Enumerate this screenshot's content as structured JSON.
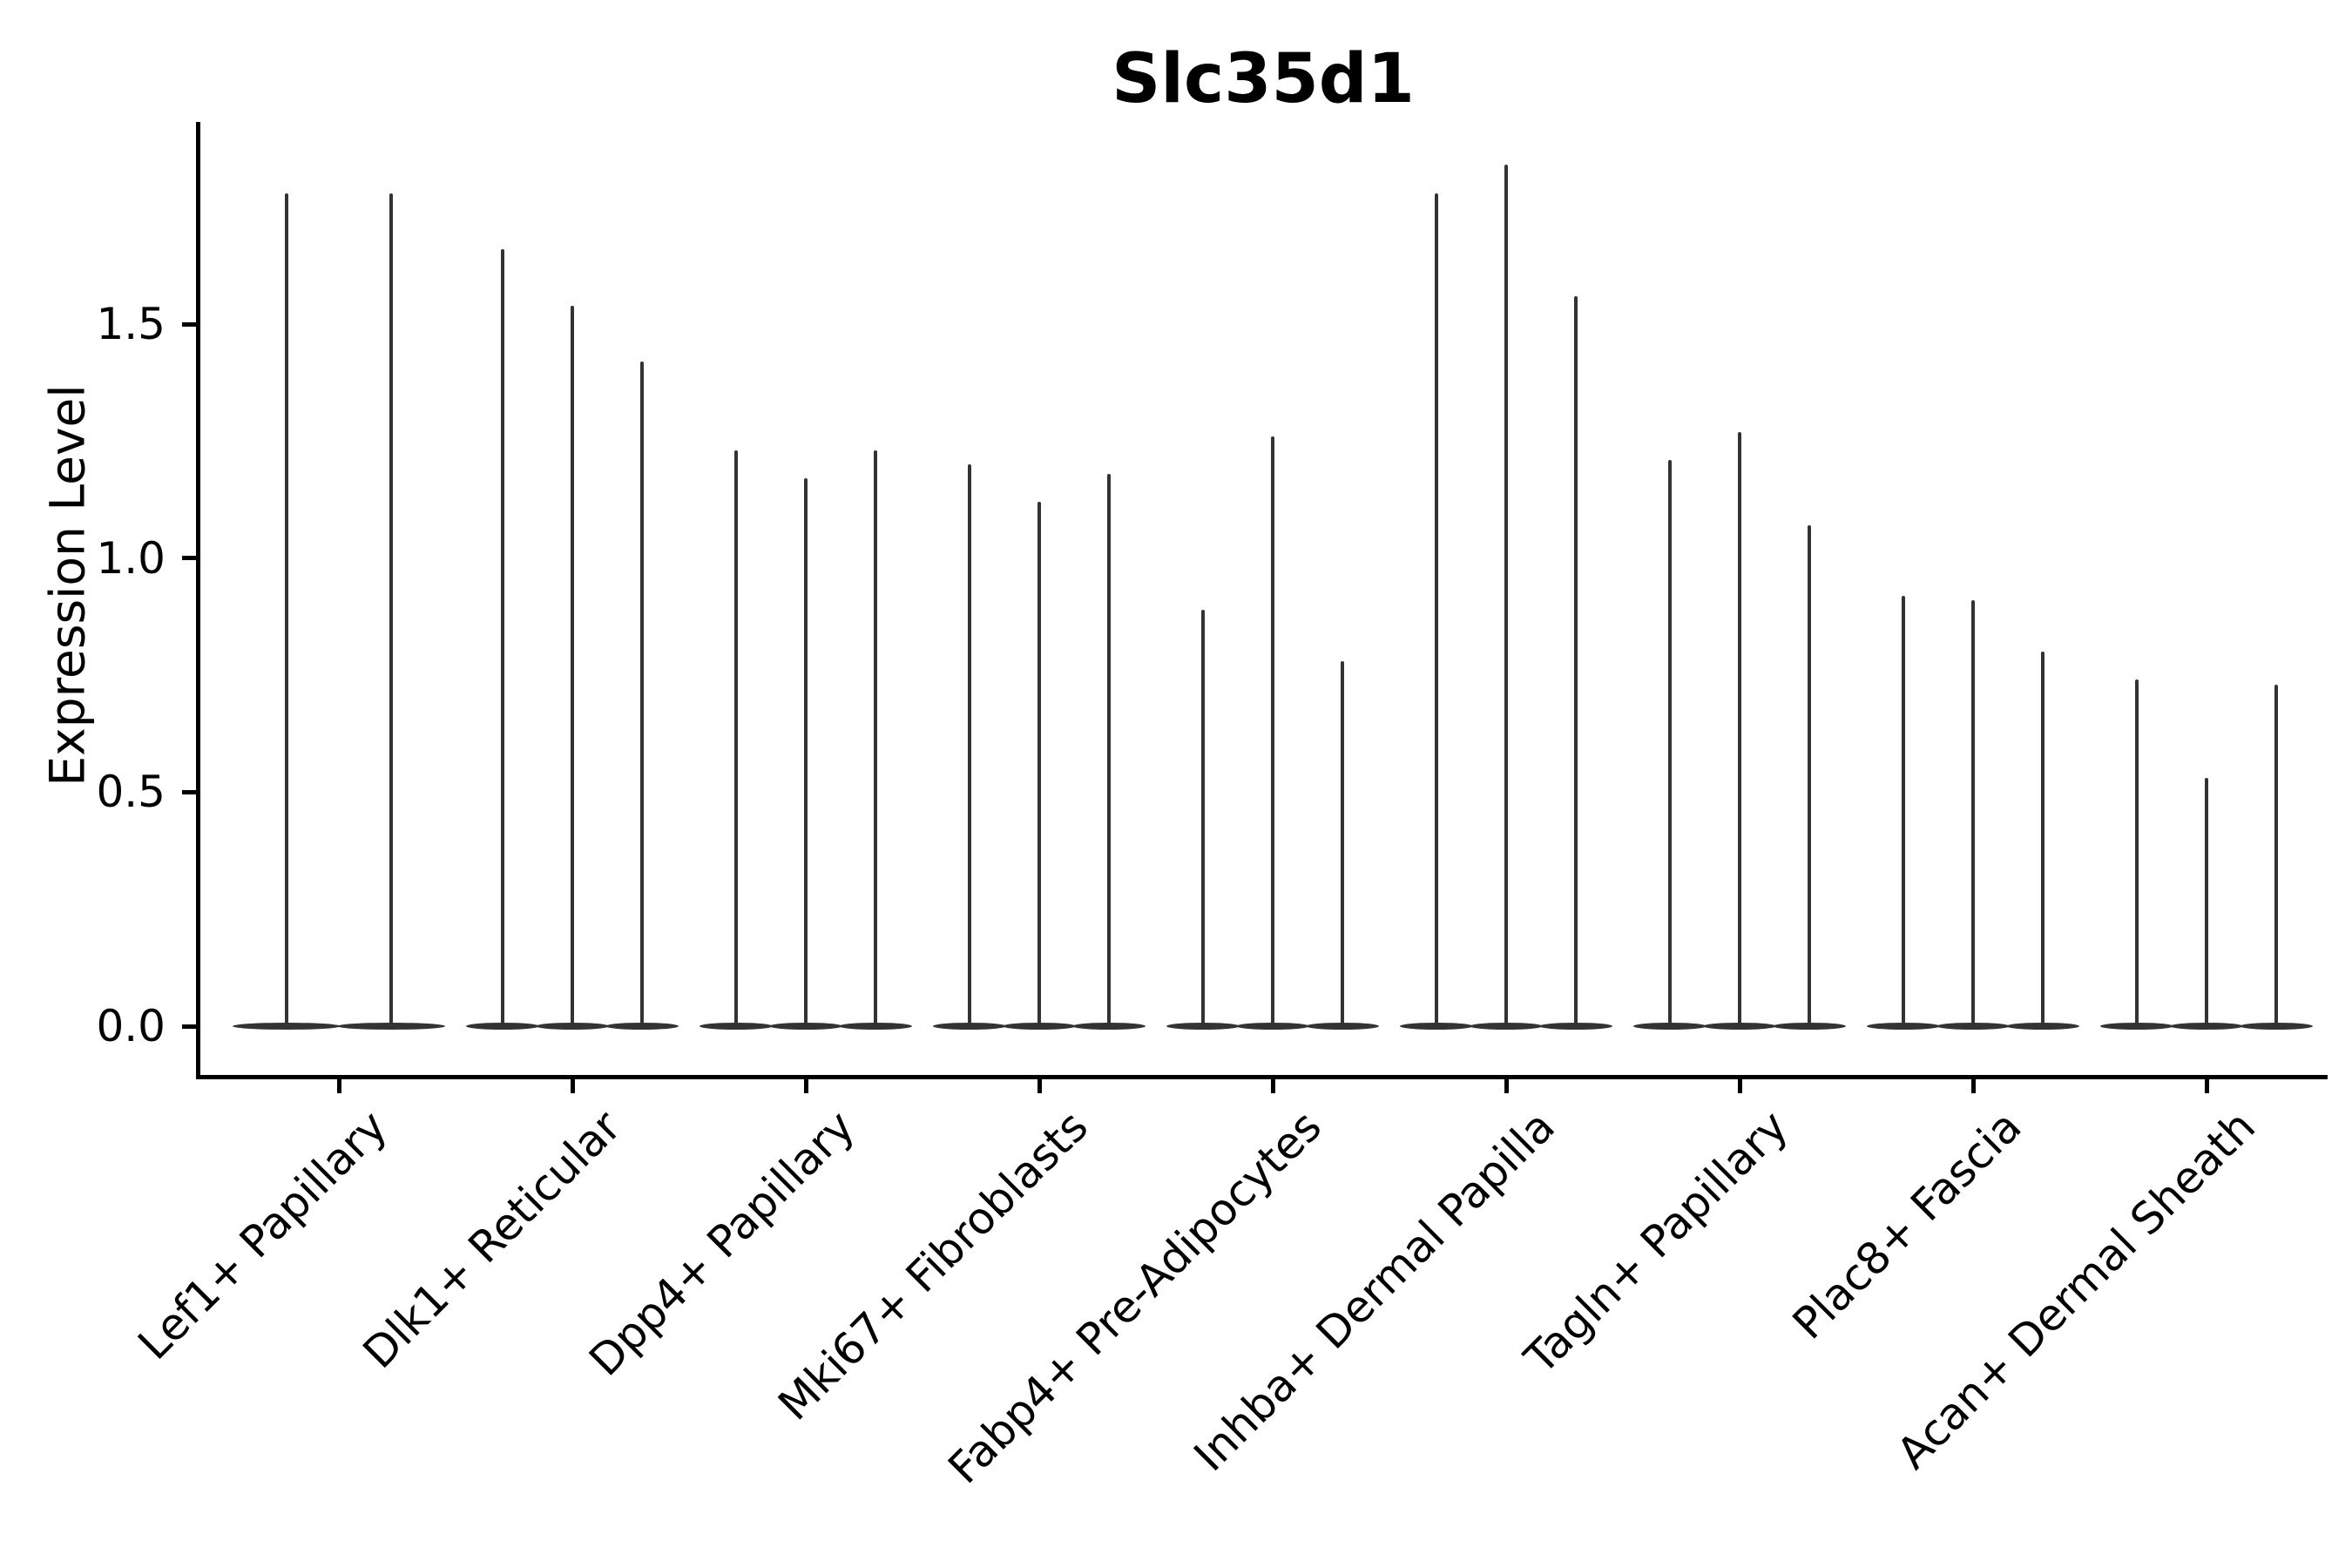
{
  "chart_data": {
    "type": "violin",
    "title": "Slc35d1",
    "xlabel": "",
    "ylabel": "Expression Level",
    "ytick_labels": [
      "0.0",
      "0.5",
      "1.0",
      "1.5"
    ],
    "ytick_values": [
      0.0,
      0.5,
      1.0,
      1.5
    ],
    "ylim": [
      -0.11,
      1.93
    ],
    "grid": false,
    "legend": false,
    "violin_style": "collapsed-at-zero-with-thin-tails",
    "violin_color": "#333333",
    "axis_color": "#000000",
    "background_color": "#ffffff",
    "groups": [
      {
        "label": "Lef1+ Papillary",
        "violin_maxima": [
          1.78,
          1.78
        ]
      },
      {
        "label": "Dlk1+ Reticular",
        "violin_maxima": [
          1.66,
          1.54,
          1.42
        ]
      },
      {
        "label": "Dpp4+ Papillary",
        "violin_maxima": [
          1.23,
          1.17,
          1.23
        ]
      },
      {
        "label": "Mki67+ Fibroblasts",
        "violin_maxima": [
          1.2,
          1.12,
          1.18
        ]
      },
      {
        "label": "Fabp4+ Pre-Adipocytes",
        "violin_maxima": [
          0.89,
          1.26,
          0.78
        ]
      },
      {
        "label": "Inhba+ Dermal Papilla",
        "violin_maxima": [
          1.78,
          1.84,
          1.56
        ]
      },
      {
        "label": "Tagln+ Papillary",
        "violin_maxima": [
          1.21,
          1.27,
          1.07
        ]
      },
      {
        "label": "Plac8+ Fascia",
        "violin_maxima": [
          0.92,
          0.91,
          0.8
        ]
      },
      {
        "label": "Acan+ Dermal Sheath",
        "violin_maxima": [
          0.74,
          0.53,
          0.73
        ]
      }
    ]
  }
}
